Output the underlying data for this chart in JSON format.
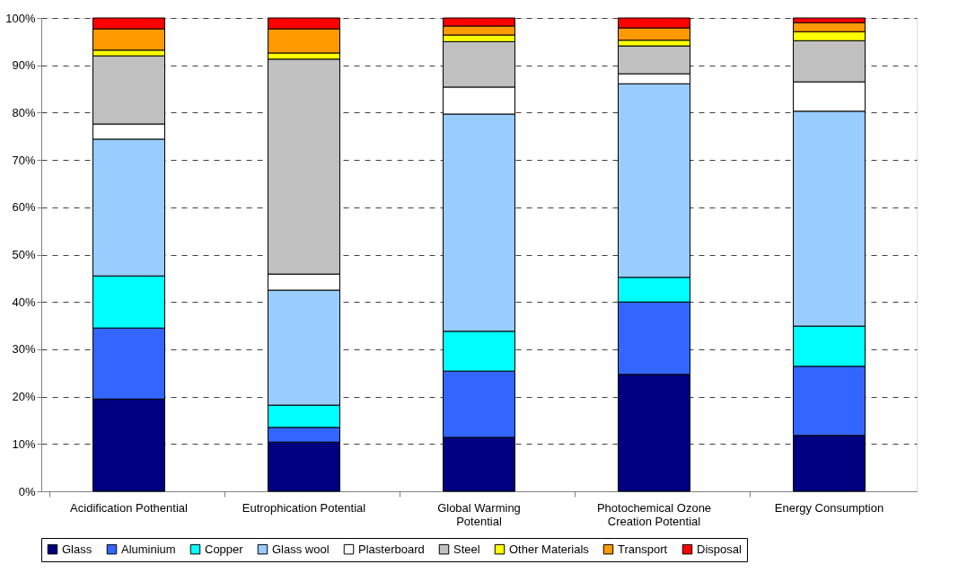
{
  "chart_data": {
    "type": "bar",
    "stacked": true,
    "categories": [
      "Acidification Pothential",
      "Eutrophication Potential",
      "Global Warming\nPotential",
      "Photochemical Ozone\nCreation Potential",
      "Energy Consumption"
    ],
    "series": [
      {
        "name": "Glass",
        "color": "#000080",
        "values": [
          19.5,
          10.4,
          11.4,
          24.7,
          11.8
        ]
      },
      {
        "name": "Aluminium",
        "color": "#3366ff",
        "values": [
          15.0,
          3.1,
          14.0,
          15.3,
          14.6
        ]
      },
      {
        "name": "Copper",
        "color": "#00ffff",
        "values": [
          11.0,
          4.7,
          8.4,
          5.2,
          8.5
        ]
      },
      {
        "name": "Glass wool",
        "color": "#99ccff",
        "values": [
          28.9,
          24.3,
          45.9,
          40.9,
          45.4
        ]
      },
      {
        "name": "Plasterboard",
        "color": "#ffffff",
        "values": [
          3.2,
          3.4,
          5.7,
          2.1,
          6.2
        ]
      },
      {
        "name": "Steel",
        "color": "#c0c0c0",
        "values": [
          14.4,
          45.4,
          9.6,
          5.9,
          8.7
        ]
      },
      {
        "name": "Other Materials",
        "color": "#ffff00",
        "values": [
          1.2,
          1.3,
          1.4,
          1.2,
          1.9
        ]
      },
      {
        "name": "Transport",
        "color": "#ff9900",
        "values": [
          4.5,
          5.1,
          1.9,
          2.6,
          1.9
        ]
      },
      {
        "name": "Disposal",
        "color": "#ff0000",
        "values": [
          2.3,
          2.3,
          1.7,
          2.1,
          1.0
        ]
      }
    ],
    "ylim": [
      0,
      100
    ],
    "yticks": [
      {
        "value": 0,
        "label": "0%"
      },
      {
        "value": 10,
        "label": "10%"
      },
      {
        "value": 20,
        "label": "20%"
      },
      {
        "value": 30,
        "label": "30%"
      },
      {
        "value": 40,
        "label": "40%"
      },
      {
        "value": 50,
        "label": "50%"
      },
      {
        "value": 60,
        "label": "60%"
      },
      {
        "value": 70,
        "label": "70%"
      },
      {
        "value": 80,
        "label": "80%"
      },
      {
        "value": 90,
        "label": "90%"
      },
      {
        "value": 100,
        "label": "100%"
      }
    ],
    "grid": "y",
    "legend": "bottom"
  }
}
